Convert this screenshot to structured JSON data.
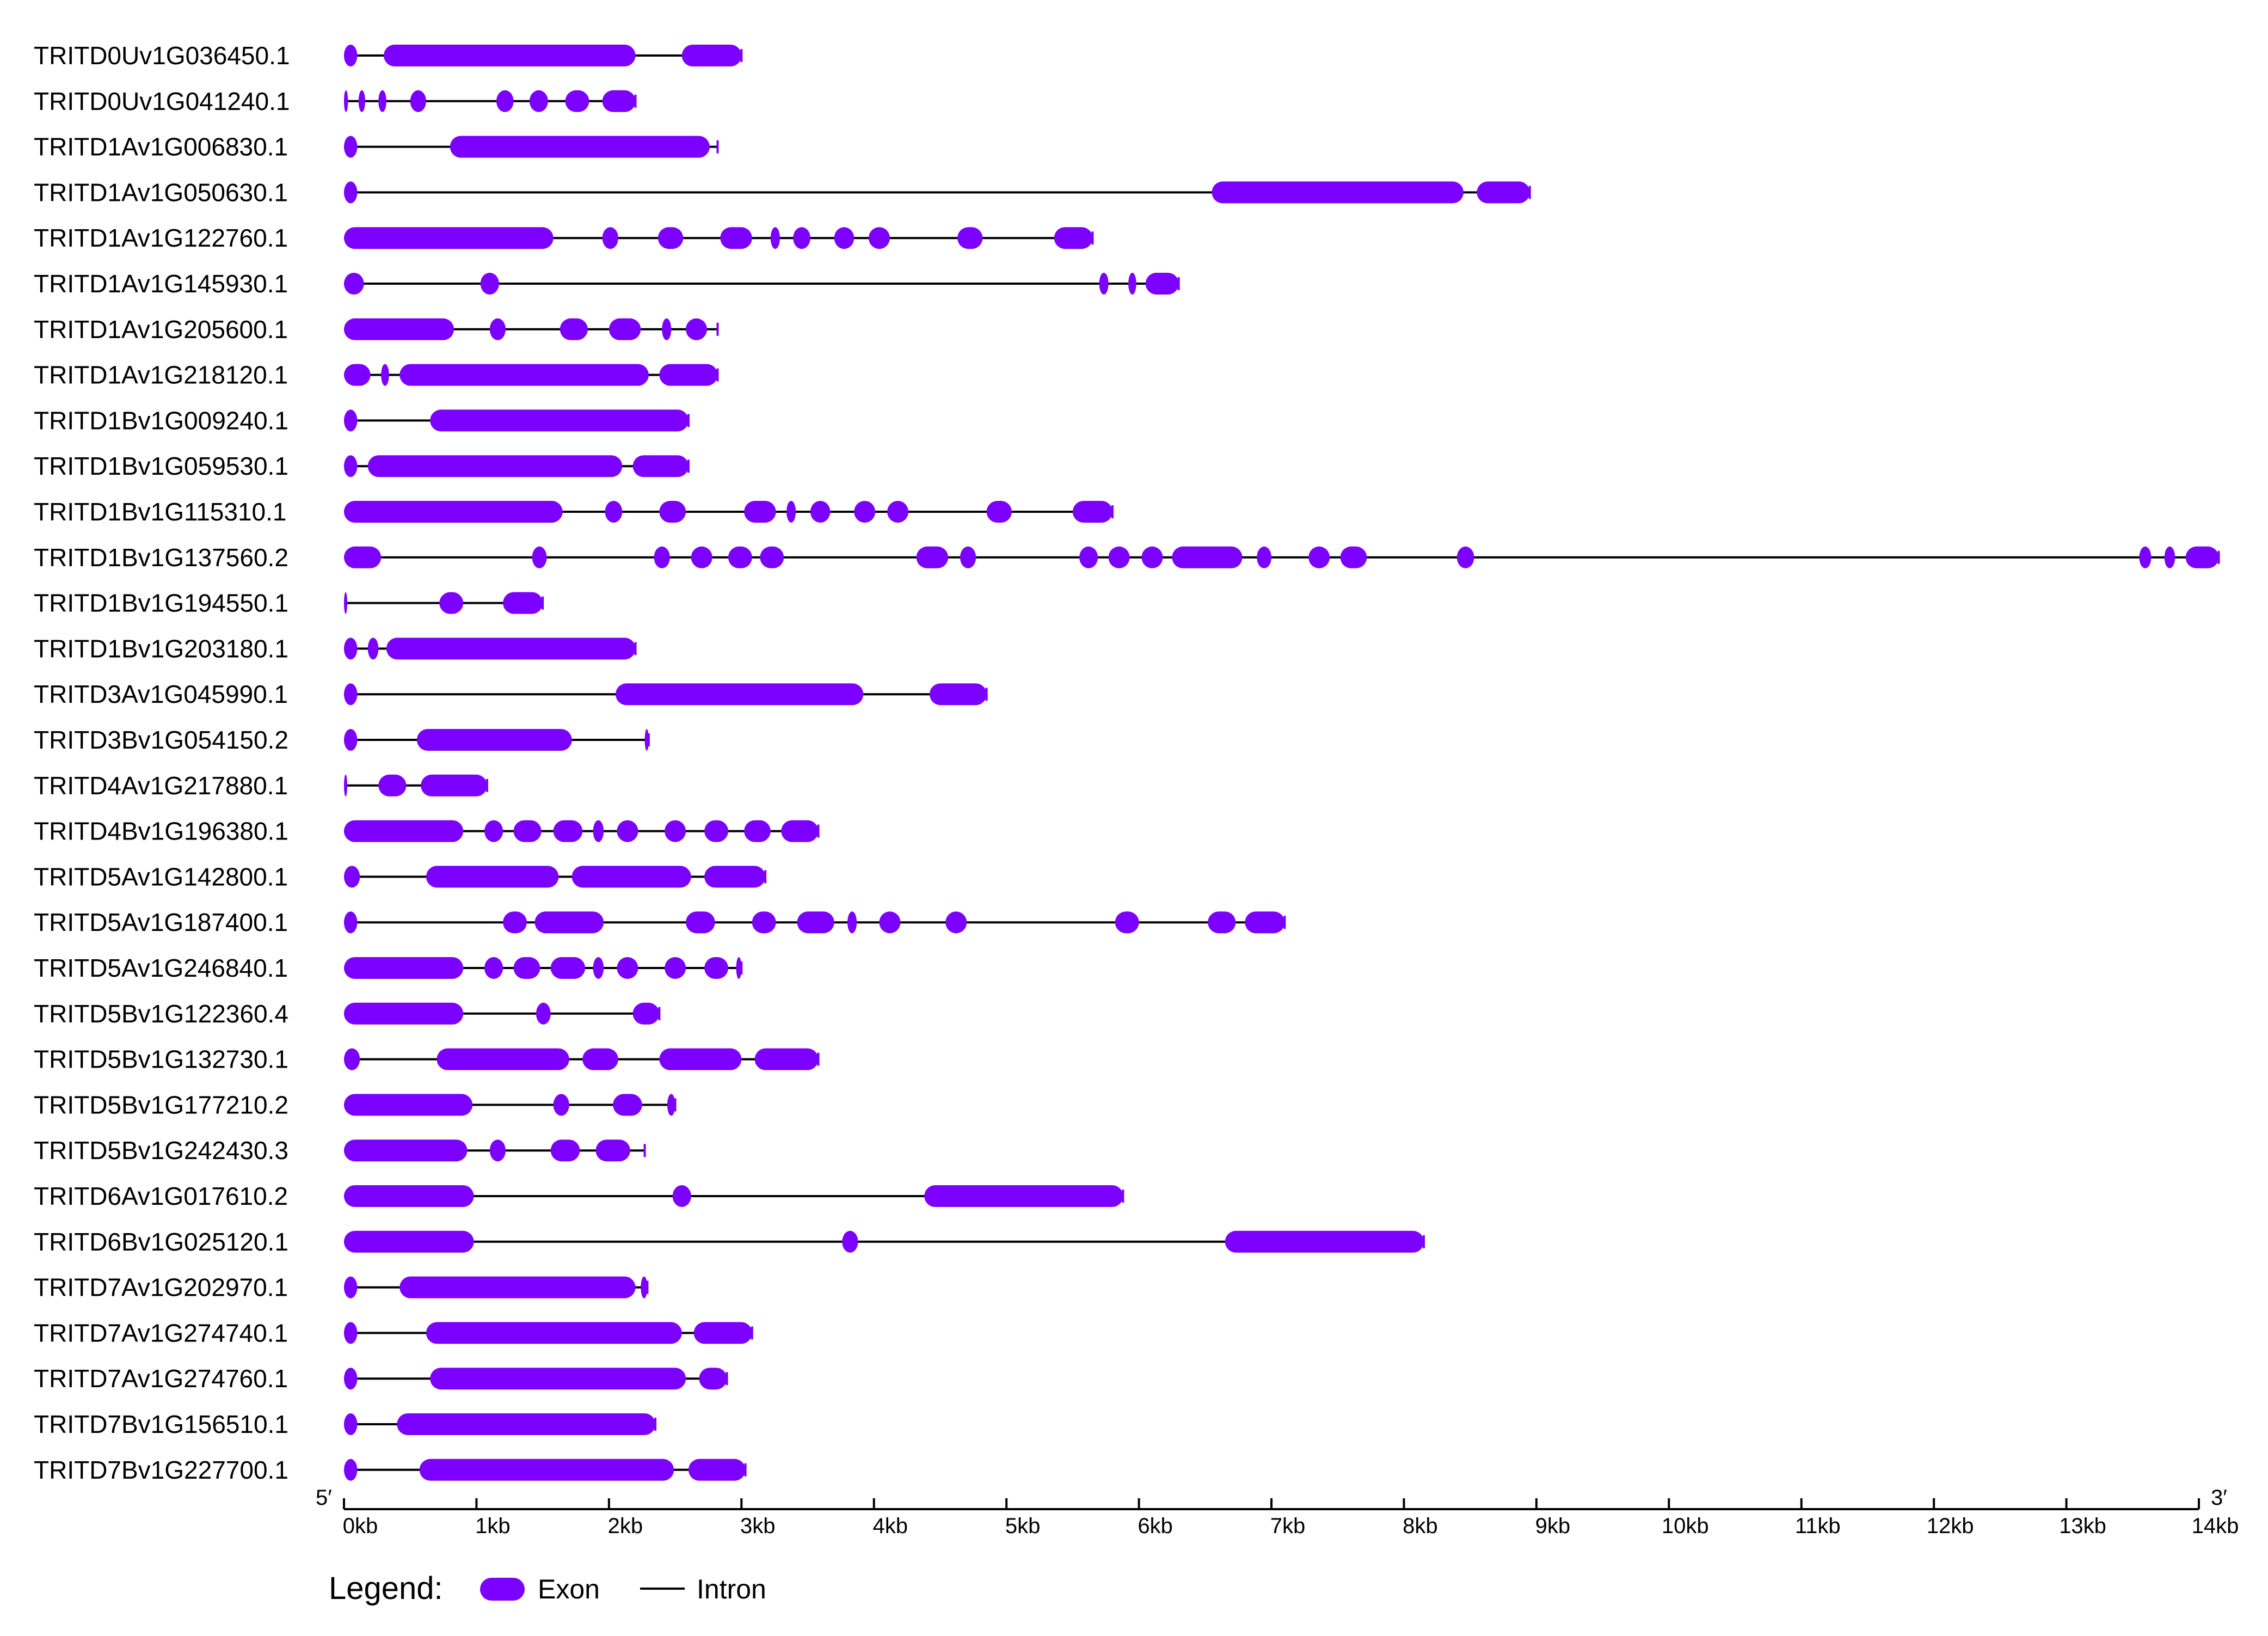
{
  "colors": {
    "exon": "#7b00ff",
    "intron": "#000000"
  },
  "axis": {
    "unit": "bp",
    "range": [
      0,
      14000
    ],
    "ticks": [
      0,
      1000,
      2000,
      3000,
      4000,
      5000,
      6000,
      7000,
      8000,
      9000,
      10000,
      11000,
      12000,
      13000,
      14000
    ],
    "tick_labels": [
      "0kb",
      "1kb",
      "2kb",
      "3kb",
      "4kb",
      "5kb",
      "6kb",
      "7kb",
      "8kb",
      "9kb",
      "10kb",
      "11kb",
      "12kb",
      "13kb",
      "14kb"
    ],
    "five_prime": "5′",
    "three_prime": "3′"
  },
  "legend": {
    "title": "Legend:",
    "exon_label": "Exon",
    "intron_label": "Intron"
  },
  "genes": [
    {
      "name": "TRITD0Uv1G036450.1",
      "length": 3000,
      "exons": [
        [
          0,
          100
        ],
        [
          300,
          2200
        ],
        [
          2550,
          3000
        ]
      ]
    },
    {
      "name": "TRITD0Uv1G041240.1",
      "length": 2200,
      "exons": [
        [
          0,
          30
        ],
        [
          110,
          160
        ],
        [
          260,
          320
        ],
        [
          500,
          620
        ],
        [
          1150,
          1280
        ],
        [
          1400,
          1540
        ],
        [
          1670,
          1850
        ],
        [
          1950,
          2200
        ]
      ]
    },
    {
      "name": "TRITD1Av1G006830.1",
      "length": 2820,
      "exons": [
        [
          0,
          100
        ],
        [
          800,
          2760
        ]
      ]
    },
    {
      "name": "TRITD1Av1G050630.1",
      "length": 8950,
      "exons": [
        [
          0,
          100
        ],
        [
          6550,
          8450
        ],
        [
          8550,
          8950
        ]
      ]
    },
    {
      "name": "TRITD1Av1G122760.1",
      "length": 5650,
      "exons": [
        [
          0,
          1580
        ],
        [
          1950,
          2070
        ],
        [
          2370,
          2560
        ],
        [
          2840,
          3080
        ],
        [
          3220,
          3290
        ],
        [
          3390,
          3520
        ],
        [
          3700,
          3850
        ],
        [
          3960,
          4120
        ],
        [
          4630,
          4820
        ],
        [
          5360,
          5650
        ]
      ]
    },
    {
      "name": "TRITD1Av1G145930.1",
      "length": 6300,
      "exons": [
        [
          0,
          150
        ],
        [
          1030,
          1170
        ],
        [
          5700,
          5770
        ],
        [
          5920,
          5980
        ],
        [
          6050,
          6300
        ]
      ]
    },
    {
      "name": "TRITD1Av1G205600.1",
      "length": 2820,
      "exons": [
        [
          0,
          830
        ],
        [
          1100,
          1220
        ],
        [
          1630,
          1840
        ],
        [
          2000,
          2240
        ],
        [
          2400,
          2470
        ],
        [
          2580,
          2740
        ]
      ]
    },
    {
      "name": "TRITD1Av1G218120.1",
      "length": 2820,
      "exons": [
        [
          0,
          200
        ],
        [
          280,
          340
        ],
        [
          420,
          2300
        ],
        [
          2380,
          2820
        ]
      ]
    },
    {
      "name": "TRITD1Bv1G009240.1",
      "length": 2600,
      "exons": [
        [
          0,
          100
        ],
        [
          650,
          2600
        ]
      ]
    },
    {
      "name": "TRITD1Bv1G059530.1",
      "length": 2600,
      "exons": [
        [
          0,
          100
        ],
        [
          180,
          2100
        ],
        [
          2180,
          2600
        ]
      ]
    },
    {
      "name": "TRITD1Bv1G115310.1",
      "length": 5800,
      "exons": [
        [
          0,
          1650
        ],
        [
          1970,
          2100
        ],
        [
          2380,
          2580
        ],
        [
          3020,
          3260
        ],
        [
          3340,
          3410
        ],
        [
          3520,
          3670
        ],
        [
          3850,
          4010
        ],
        [
          4100,
          4260
        ],
        [
          4850,
          5040
        ],
        [
          5500,
          5800
        ]
      ]
    },
    {
      "name": "TRITD1Bv1G137560.2",
      "length": 14150,
      "exons": [
        [
          0,
          280
        ],
        [
          1420,
          1530
        ],
        [
          2340,
          2460
        ],
        [
          2620,
          2780
        ],
        [
          2900,
          3080
        ],
        [
          3140,
          3320
        ],
        [
          4320,
          4560
        ],
        [
          4650,
          4770
        ],
        [
          5550,
          5690
        ],
        [
          5770,
          5930
        ],
        [
          6020,
          6180
        ],
        [
          6250,
          6780
        ],
        [
          6890,
          7000
        ],
        [
          7280,
          7440
        ],
        [
          7520,
          7720
        ],
        [
          8400,
          8530
        ],
        [
          13550,
          13640
        ],
        [
          13740,
          13820
        ],
        [
          13900,
          14150
        ]
      ]
    },
    {
      "name": "TRITD1Bv1G194550.1",
      "length": 1500,
      "exons": [
        [
          0,
          20
        ],
        [
          720,
          900
        ],
        [
          1200,
          1500
        ]
      ]
    },
    {
      "name": "TRITD1Bv1G203180.1",
      "length": 2200,
      "exons": [
        [
          0,
          100
        ],
        [
          180,
          260
        ],
        [
          320,
          2200
        ]
      ]
    },
    {
      "name": "TRITD3Av1G045990.1",
      "length": 4850,
      "exons": [
        [
          0,
          100
        ],
        [
          2050,
          3920
        ],
        [
          4420,
          4850
        ]
      ]
    },
    {
      "name": "TRITD3Bv1G054150.2",
      "length": 2300,
      "exons": [
        [
          0,
          100
        ],
        [
          550,
          1720
        ],
        [
          2270,
          2300
        ]
      ]
    },
    {
      "name": "TRITD4Av1G217880.1",
      "length": 1080,
      "exons": [
        [
          0,
          20
        ],
        [
          260,
          470
        ],
        [
          580,
          1080
        ]
      ]
    },
    {
      "name": "TRITD4Bv1G196380.1",
      "length": 3580,
      "exons": [
        [
          0,
          900
        ],
        [
          1060,
          1200
        ],
        [
          1280,
          1490
        ],
        [
          1580,
          1800
        ],
        [
          1880,
          1960
        ],
        [
          2060,
          2220
        ],
        [
          2420,
          2580
        ],
        [
          2720,
          2900
        ],
        [
          3020,
          3220
        ],
        [
          3300,
          3580
        ]
      ]
    },
    {
      "name": "TRITD5Av1G142800.1",
      "length": 3180,
      "exons": [
        [
          0,
          120
        ],
        [
          620,
          1620
        ],
        [
          1720,
          2620
        ],
        [
          2720,
          3180
        ]
      ]
    },
    {
      "name": "TRITD5Av1G187400.1",
      "length": 7100,
      "exons": [
        [
          0,
          100
        ],
        [
          1200,
          1380
        ],
        [
          1440,
          1960
        ],
        [
          2580,
          2800
        ],
        [
          3080,
          3260
        ],
        [
          3420,
          3700
        ],
        [
          3800,
          3870
        ],
        [
          4040,
          4200
        ],
        [
          4540,
          4700
        ],
        [
          5820,
          6000
        ],
        [
          6520,
          6730
        ],
        [
          6800,
          7100
        ]
      ]
    },
    {
      "name": "TRITD5Av1G246840.1",
      "length": 3000,
      "exons": [
        [
          0,
          900
        ],
        [
          1060,
          1200
        ],
        [
          1280,
          1480
        ],
        [
          1560,
          1820
        ],
        [
          1880,
          1960
        ],
        [
          2060,
          2220
        ],
        [
          2420,
          2580
        ],
        [
          2720,
          2900
        ],
        [
          2960,
          3000
        ]
      ]
    },
    {
      "name": "TRITD5Bv1G122360.4",
      "length": 2380,
      "exons": [
        [
          0,
          900
        ],
        [
          1450,
          1560
        ],
        [
          2180,
          2380
        ]
      ]
    },
    {
      "name": "TRITD5Bv1G132730.1",
      "length": 3580,
      "exons": [
        [
          0,
          120
        ],
        [
          700,
          1700
        ],
        [
          1800,
          2070
        ],
        [
          2380,
          3000
        ],
        [
          3100,
          3580
        ]
      ]
    },
    {
      "name": "TRITD5Bv1G177210.2",
      "length": 2500,
      "exons": [
        [
          0,
          970
        ],
        [
          1580,
          1700
        ],
        [
          2030,
          2250
        ],
        [
          2440,
          2500
        ]
      ]
    },
    {
      "name": "TRITD5Bv1G242430.3",
      "length": 2270,
      "exons": [
        [
          0,
          930
        ],
        [
          1100,
          1220
        ],
        [
          1560,
          1780
        ],
        [
          1900,
          2160
        ]
      ]
    },
    {
      "name": "TRITD6Av1G017610.2",
      "length": 5880,
      "exons": [
        [
          0,
          980
        ],
        [
          2480,
          2620
        ],
        [
          4380,
          5880
        ]
      ]
    },
    {
      "name": "TRITD6Bv1G025120.1",
      "length": 8150,
      "exons": [
        [
          0,
          980
        ],
        [
          3760,
          3880
        ],
        [
          6650,
          8150
        ]
      ]
    },
    {
      "name": "TRITD7Av1G202970.1",
      "length": 2290,
      "exons": [
        [
          0,
          100
        ],
        [
          420,
          2200
        ],
        [
          2240,
          2290
        ]
      ]
    },
    {
      "name": "TRITD7Av1G274740.1",
      "length": 3080,
      "exons": [
        [
          0,
          100
        ],
        [
          620,
          2550
        ],
        [
          2640,
          3080
        ]
      ]
    },
    {
      "name": "TRITD7Av1G274760.1",
      "length": 2890,
      "exons": [
        [
          0,
          100
        ],
        [
          650,
          2580
        ],
        [
          2680,
          2890
        ]
      ]
    },
    {
      "name": "TRITD7Bv1G156510.1",
      "length": 2350,
      "exons": [
        [
          0,
          100
        ],
        [
          400,
          2350
        ]
      ]
    },
    {
      "name": "TRITD7Bv1G227700.1",
      "length": 3030,
      "exons": [
        [
          0,
          100
        ],
        [
          570,
          2490
        ],
        [
          2600,
          3030
        ]
      ]
    }
  ]
}
